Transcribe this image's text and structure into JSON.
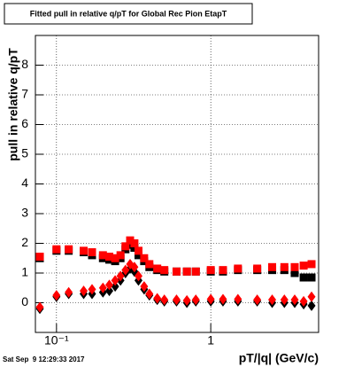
{
  "chart_data": {
    "type": "scatter",
    "title": "Fitted pull in relative q/pT for Global Rec Pion EtapT",
    "y_label": "pull in relative q/pT",
    "x_label": "pT/|q| (GeV/c)",
    "footer": "Sat Sep  9 12:29:33 2017",
    "log_x": true,
    "grid": true,
    "xlim": [
      0.073,
      5.0
    ],
    "ylim": [
      -1,
      9
    ],
    "xticks": [
      {
        "value": 0.1,
        "label": "10⁻¹"
      },
      1
    ],
    "yticks": [
      0,
      1,
      2,
      3,
      4,
      5,
      6,
      7,
      8
    ],
    "x": [
      0.078,
      0.1,
      0.12,
      0.15,
      0.17,
      0.2,
      0.22,
      0.24,
      0.26,
      0.28,
      0.3,
      0.32,
      0.34,
      0.37,
      0.4,
      0.45,
      0.5,
      0.6,
      0.7,
      0.8,
      1.0,
      1.2,
      1.5,
      2.0,
      2.5,
      3.0,
      3.5,
      4.0,
      4.5
    ],
    "series": [
      {
        "color": "#000000",
        "marker": "square",
        "values": [
          1.5,
          1.75,
          1.75,
          1.7,
          1.6,
          1.5,
          1.45,
          1.4,
          1.5,
          1.8,
          1.95,
          1.85,
          1.6,
          1.4,
          1.2,
          1.1,
          1.05,
          1.05,
          1.05,
          1.05,
          1.05,
          1.05,
          1.1,
          1.1,
          1.1,
          1.1,
          1.0,
          0.85,
          0.85
        ]
      },
      {
        "color": "#000000",
        "marker": "diamond",
        "values": [
          -0.2,
          0.2,
          0.3,
          0.3,
          0.3,
          0.35,
          0.4,
          0.55,
          0.75,
          1.0,
          1.15,
          1.05,
          0.75,
          0.45,
          0.25,
          0.1,
          0.05,
          0.05,
          0.0,
          0.05,
          0.05,
          0.05,
          0.05,
          0.05,
          0.0,
          0.0,
          0.0,
          -0.05,
          -0.1
        ]
      },
      {
        "color": "#ff0000",
        "marker": "square",
        "values": [
          1.55,
          1.8,
          1.8,
          1.75,
          1.7,
          1.6,
          1.55,
          1.5,
          1.6,
          1.9,
          2.1,
          2.0,
          1.75,
          1.5,
          1.3,
          1.15,
          1.1,
          1.05,
          1.05,
          1.05,
          1.1,
          1.1,
          1.15,
          1.15,
          1.2,
          1.2,
          1.2,
          1.25,
          1.3
        ]
      },
      {
        "color": "#ff0000",
        "marker": "diamond",
        "values": [
          -0.15,
          0.25,
          0.35,
          0.4,
          0.45,
          0.5,
          0.6,
          0.75,
          0.9,
          1.1,
          1.3,
          1.2,
          0.9,
          0.55,
          0.3,
          0.15,
          0.1,
          0.1,
          0.08,
          0.1,
          0.12,
          0.12,
          0.12,
          0.1,
          0.1,
          0.1,
          0.1,
          0.05,
          0.2
        ]
      }
    ]
  }
}
